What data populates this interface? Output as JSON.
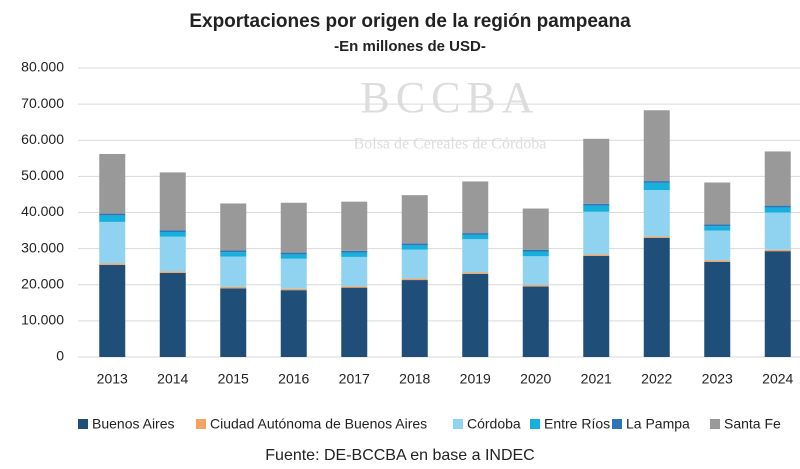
{
  "chart_data": {
    "type": "stacked_bar",
    "title": "Exportaciones por origen de la región pampeana",
    "subtitle": "-En millones de USD-",
    "watermark": "BCCBA",
    "watermark_subtitle": "Bolsa de Cereales de Córdoba",
    "source": "Fuente: DE-BCCBA en base a INDEC",
    "categories": [
      "2013",
      "2014",
      "2015",
      "2016",
      "2017",
      "2018",
      "2019",
      "2020",
      "2021",
      "2022",
      "2023",
      "2024"
    ],
    "series": [
      {
        "name": "Buenos Aires",
        "color": "#1f4e79",
        "values": [
          25500,
          23300,
          19000,
          18500,
          19200,
          21300,
          23000,
          19500,
          28000,
          33000,
          26300,
          29300
        ]
      },
      {
        "name": "Ciudad Autónoma de Buenos Aires",
        "color": "#f4a460",
        "values": [
          400,
          400,
          400,
          400,
          400,
          400,
          400,
          400,
          400,
          400,
          400,
          400
        ]
      },
      {
        "name": "Córdoba",
        "color": "#8fd3f0",
        "values": [
          11500,
          9600,
          8400,
          8300,
          8100,
          8000,
          9200,
          8000,
          11800,
          12800,
          8300,
          10300
        ]
      },
      {
        "name": "Entre Ríos",
        "color": "#17b0dc",
        "values": [
          1800,
          1300,
          1200,
          1200,
          1200,
          1200,
          1200,
          1300,
          1700,
          2000,
          1200,
          1400
        ]
      },
      {
        "name": "La Pampa",
        "color": "#2e75b6",
        "values": [
          500,
          500,
          500,
          500,
          500,
          500,
          500,
          500,
          500,
          500,
          500,
          500
        ]
      },
      {
        "name": "Santa Fe",
        "color": "#999999",
        "values": [
          16500,
          16000,
          13000,
          13800,
          13600,
          13400,
          14300,
          11400,
          18000,
          19600,
          11600,
          15000
        ]
      }
    ],
    "ylim": [
      0,
      80000
    ],
    "yticks": [
      0,
      {
        "value": 10000,
        "label": "10.000"
      },
      {
        "value": 20000,
        "label": "20.000"
      },
      {
        "value": 30000,
        "label": "30.000"
      },
      {
        "value": 40000,
        "label": "40.000"
      },
      {
        "value": 50000,
        "label": "50.000"
      },
      {
        "value": 60000,
        "label": "60.000"
      },
      {
        "value": 70000,
        "label": "70.000"
      },
      {
        "value": 80000,
        "label": "80.000"
      }
    ],
    "grid": true
  }
}
